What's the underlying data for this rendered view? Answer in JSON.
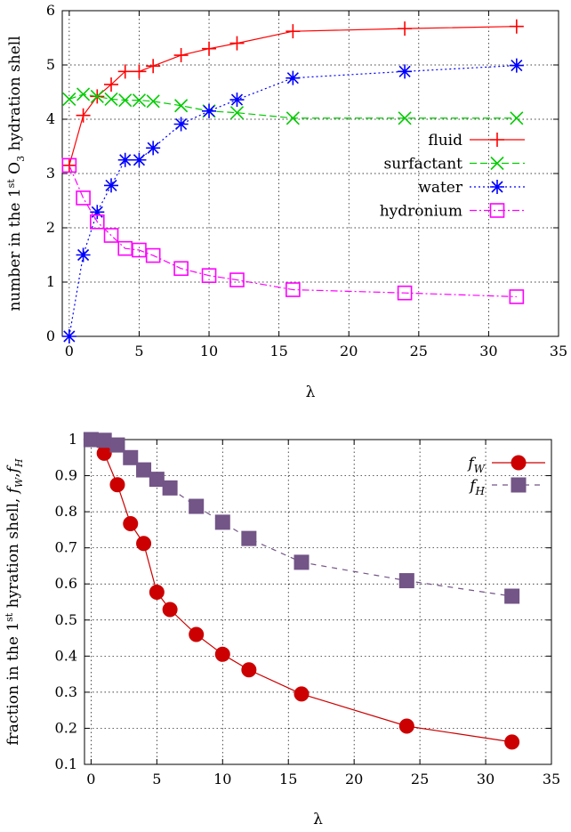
{
  "chart_data": [
    {
      "type": "line",
      "xlabel": "λ",
      "ylabel_parts": [
        "number in the 1",
        "st",
        " O",
        "3",
        " hydration shell"
      ],
      "xlim": [
        -0.5,
        35
      ],
      "ylim": [
        0,
        6
      ],
      "xticks": [
        0,
        5,
        10,
        15,
        20,
        25,
        30,
        35
      ],
      "yticks": [
        0,
        1,
        2,
        3,
        4,
        5,
        6
      ],
      "grid": true,
      "legend_position": "right",
      "series": [
        {
          "name": "fluid",
          "color": "#ff0000",
          "marker": "plus",
          "dash": "",
          "x": [
            0,
            1,
            2,
            3,
            4,
            5,
            6,
            8,
            10,
            12,
            16,
            24,
            32
          ],
          "y": [
            3.15,
            4.07,
            4.42,
            4.64,
            4.88,
            4.88,
            4.98,
            5.18,
            5.3,
            5.4,
            5.62,
            5.67,
            5.71
          ]
        },
        {
          "name": "surfactant",
          "color": "#00cc00",
          "marker": "cross",
          "dash": "8,4",
          "x": [
            0,
            1,
            2,
            3,
            4,
            5,
            6,
            8,
            10,
            12,
            16,
            24,
            32
          ],
          "y": [
            4.37,
            4.46,
            4.42,
            4.37,
            4.35,
            4.35,
            4.33,
            4.25,
            4.15,
            4.12,
            4.02,
            4.02,
            4.02
          ]
        },
        {
          "name": "water",
          "color": "#0000ff",
          "marker": "star",
          "dash": "2,3",
          "x": [
            0,
            1,
            2,
            3,
            4,
            5,
            6,
            8,
            10,
            12,
            16,
            24,
            32
          ],
          "y": [
            0.0,
            1.5,
            2.29,
            2.78,
            3.25,
            3.25,
            3.47,
            3.91,
            4.15,
            4.36,
            4.76,
            4.88,
            4.99
          ]
        },
        {
          "name": "hydronium",
          "color": "#ff00ff",
          "marker": "square-open",
          "dash": "8,3,2,3",
          "x": [
            0,
            1,
            2,
            3,
            4,
            5,
            6,
            8,
            10,
            12,
            16,
            24,
            32
          ],
          "y": [
            3.15,
            2.55,
            2.11,
            1.86,
            1.62,
            1.59,
            1.49,
            1.25,
            1.12,
            1.04,
            0.86,
            0.8,
            0.73
          ]
        }
      ]
    },
    {
      "type": "line",
      "xlabel": "λ",
      "ylabel_parts": [
        "fraction in the 1",
        "st",
        " hyration shell, ",
        "f",
        "W",
        ",",
        "f",
        "H"
      ],
      "xlim": [
        -0.5,
        35
      ],
      "ylim": [
        0.1,
        1.0
      ],
      "xticks": [
        0,
        5,
        10,
        15,
        20,
        25,
        30,
        35
      ],
      "yticks": [
        0.1,
        0.2,
        0.3,
        0.4,
        0.5,
        0.6,
        0.7,
        0.8,
        0.9,
        1
      ],
      "grid": true,
      "legend_position": "top-right",
      "series": [
        {
          "name": "fW",
          "label_main": "f",
          "label_sub": "W",
          "color": "#cc0000",
          "marker": "circle",
          "dash": "",
          "x": [
            0,
            1,
            2,
            3,
            4,
            5,
            6,
            8,
            10,
            12,
            16,
            24,
            32
          ],
          "y": [
            1.0,
            0.962,
            0.875,
            0.767,
            0.712,
            0.577,
            0.529,
            0.46,
            0.405,
            0.362,
            0.295,
            0.206,
            0.162
          ]
        },
        {
          "name": "fH",
          "label_main": "f",
          "label_sub": "H",
          "color": "#735587",
          "marker": "square",
          "dash": "6,6",
          "x": [
            0,
            1,
            2,
            3,
            4,
            5,
            6,
            8,
            10,
            12,
            16,
            24,
            32
          ],
          "y": [
            1.0,
            0.998,
            0.985,
            0.95,
            0.916,
            0.89,
            0.866,
            0.815,
            0.771,
            0.726,
            0.66,
            0.609,
            0.566
          ]
        }
      ]
    }
  ]
}
